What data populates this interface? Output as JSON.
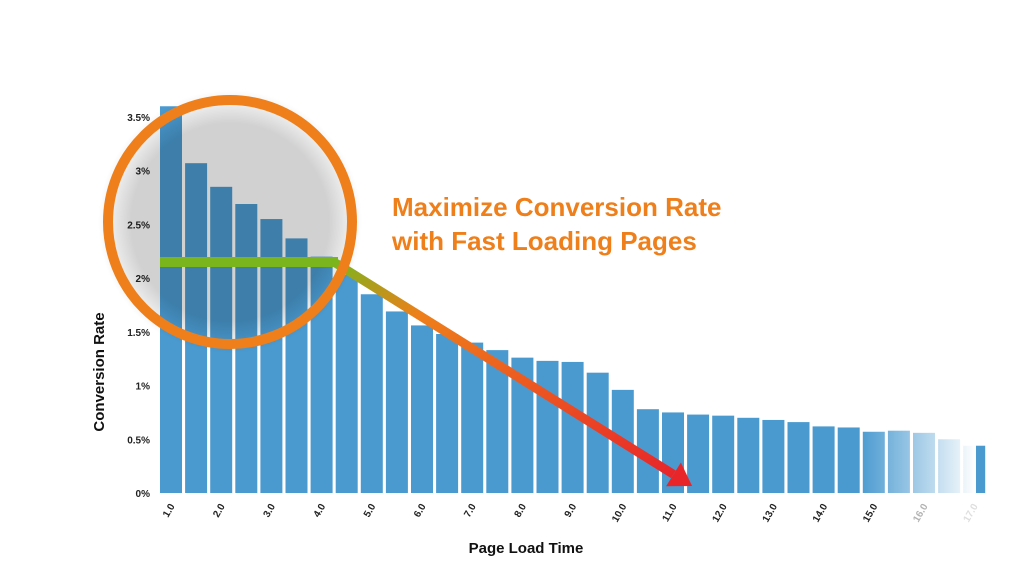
{
  "chart_data": {
    "type": "bar",
    "title": "",
    "xlabel": "Page Load Time",
    "ylabel": "Conversion Rate",
    "ylim": [
      0,
      3.5
    ],
    "y_ticks": [
      "0%",
      "0.5%",
      "1%",
      "1.5%",
      "2%",
      "2.5%",
      "3%",
      "3.5%"
    ],
    "x_tick_labels": [
      "1.0",
      "2.0",
      "3.0",
      "4.0",
      "5.0",
      "6.0",
      "7.0",
      "8.0",
      "9.0",
      "10.0",
      "11.0",
      "12.0",
      "13.0",
      "14.0",
      "15.0",
      "16.0",
      "17.0"
    ],
    "x": [
      1.0,
      1.5,
      2.0,
      2.5,
      3.0,
      3.5,
      4.0,
      4.5,
      5.0,
      5.5,
      6.0,
      6.5,
      7.0,
      7.5,
      8.0,
      8.5,
      9.0,
      9.5,
      10.0,
      10.5,
      11.0,
      11.5,
      12.0,
      12.5,
      13.0,
      13.5,
      14.0,
      14.5,
      15.0,
      15.5,
      16.0,
      16.5,
      17.0
    ],
    "values": [
      3.6,
      3.07,
      2.85,
      2.69,
      2.55,
      2.37,
      2.2,
      2.03,
      1.85,
      1.69,
      1.56,
      1.48,
      1.4,
      1.33,
      1.26,
      1.23,
      1.22,
      1.12,
      0.96,
      0.78,
      0.75,
      0.73,
      0.72,
      0.7,
      0.68,
      0.66,
      0.62,
      0.61,
      0.57,
      0.58,
      0.56,
      0.5,
      0.44
    ],
    "bar_color": "#4a9ad0",
    "annotation": {
      "headline_lines": [
        "Maximize Conversion Rate",
        "with Fast Loading Pages"
      ],
      "highlight_level": 2.15,
      "highlight_color": "#7ab51d",
      "circle_color": "#ee7f1a",
      "arrow_colors": [
        "#ee7f1a",
        "#e8262a"
      ],
      "arrow_end_x": 11.5
    },
    "grid": false
  }
}
